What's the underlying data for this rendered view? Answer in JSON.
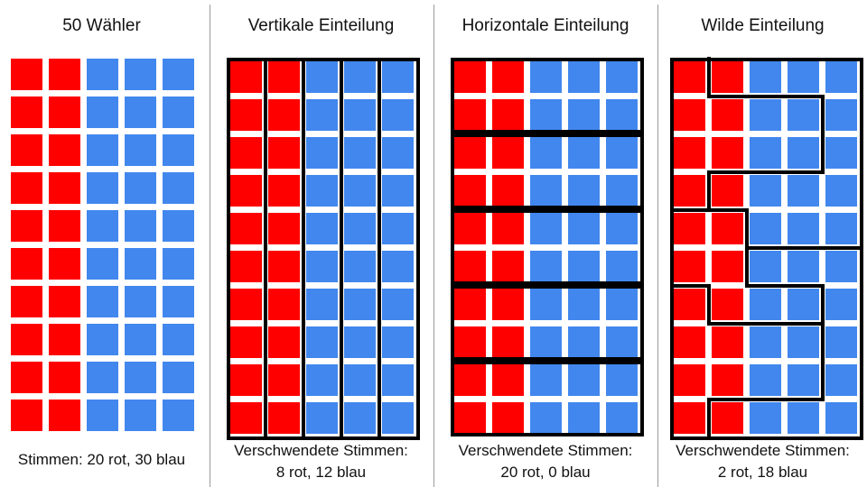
{
  "colors": {
    "red": "#ff0000",
    "blue": "#4287ee",
    "border": "#000000",
    "divider": "#9a9a9a"
  },
  "grid": {
    "columns": 5,
    "rows": 10,
    "red_columns": 2
  },
  "panels": [
    {
      "title": "50 Wähler",
      "caption_lines": [
        "Stimmen: 20 rot, 30 blau"
      ],
      "partition": "none"
    },
    {
      "title": "Vertikale Einteilung",
      "caption_lines": [
        "Verschwendete Stimmen:",
        "8 rot, 12 blau"
      ],
      "partition": "vertical"
    },
    {
      "title": "Horizontale Einteilung",
      "caption_lines": [
        "Verschwendete Stimmen:",
        "20 rot, 0 blau"
      ],
      "partition": "horizontal"
    },
    {
      "title": "Wilde Einteilung",
      "caption_lines": [
        "Verschwendete Stimmen:",
        "2 rot, 18 blau"
      ],
      "partition": "wild"
    }
  ]
}
